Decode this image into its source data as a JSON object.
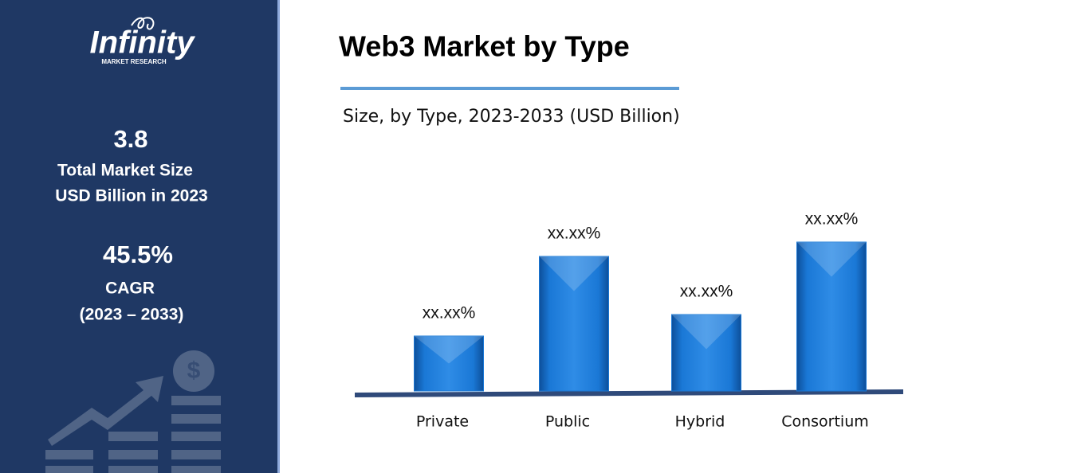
{
  "sidebar": {
    "logo": "Infinity",
    "logo_sub": "MARKET RESEARCH",
    "market_size": "3.8",
    "market_size_label_1": "Total Market Size",
    "market_size_label_2": "USD Billion in 2023",
    "cagr": "45.5%",
    "cagr_label": "CAGR",
    "cagr_period": "(2023 – 2033)"
  },
  "chart_data": {
    "type": "bar",
    "title": "Web3 Market by Type",
    "subtitle": "Size, by Type, 2023-2033 (USD Billion)",
    "categories": [
      "Private",
      "Public",
      "Hybrid",
      "Consortium"
    ],
    "values": [
      6.9,
      16.9,
      9.6,
      18.7
    ],
    "value_labels": [
      "xx.xx%",
      "xx.xx%",
      "xx.xx%",
      "xx.xx%"
    ],
    "color": "#1a78d6",
    "ylim": [
      0,
      20
    ]
  }
}
